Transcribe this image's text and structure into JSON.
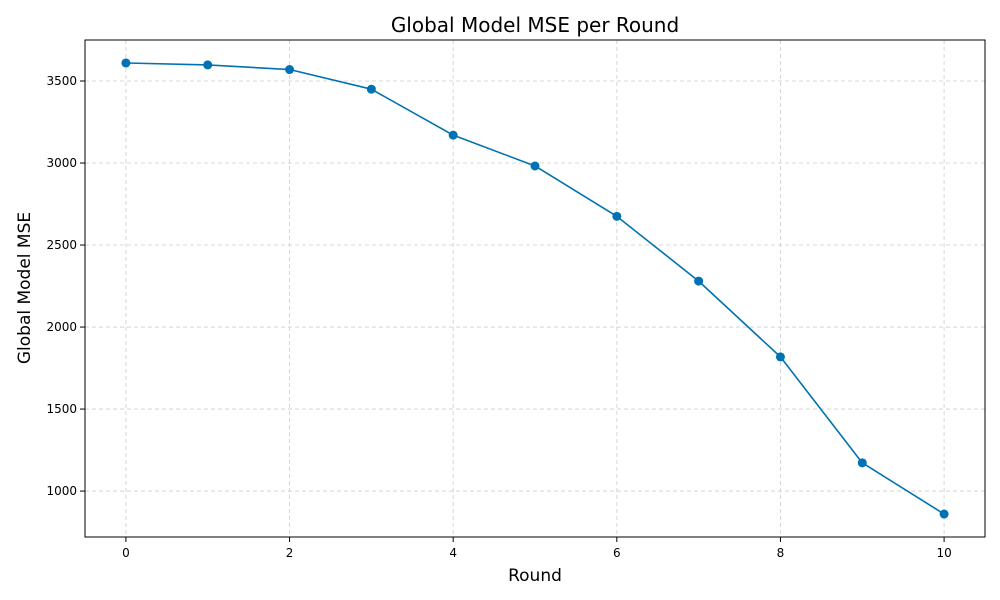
{
  "chart_data": {
    "type": "line",
    "title": "Global Model MSE per Round",
    "xlabel": "Round",
    "ylabel": "Global Model MSE",
    "x": [
      0,
      1,
      2,
      3,
      4,
      5,
      6,
      7,
      8,
      9,
      10
    ],
    "series": [
      {
        "values": [
          3610,
          3598,
          3570,
          3450,
          3170,
          2982,
          2675,
          2280,
          1818,
          1172,
          860
        ],
        "color": "#0072b2",
        "marker": "circle"
      }
    ],
    "xlim": [
      -0.5,
      10.5
    ],
    "ylim": [
      720,
      3750
    ],
    "xticks": [
      0,
      2,
      4,
      6,
      8,
      10
    ],
    "xtick_labels": [
      "0",
      "2",
      "4",
      "6",
      "8",
      "10"
    ],
    "yticks": [
      1000,
      1500,
      2000,
      2500,
      3000,
      3500
    ],
    "ytick_labels": [
      "1000",
      "1500",
      "2000",
      "2500",
      "3000",
      "3500"
    ],
    "grid": true,
    "grid_color": "#cccccc",
    "grid_style": "dashed",
    "legend": false
  }
}
